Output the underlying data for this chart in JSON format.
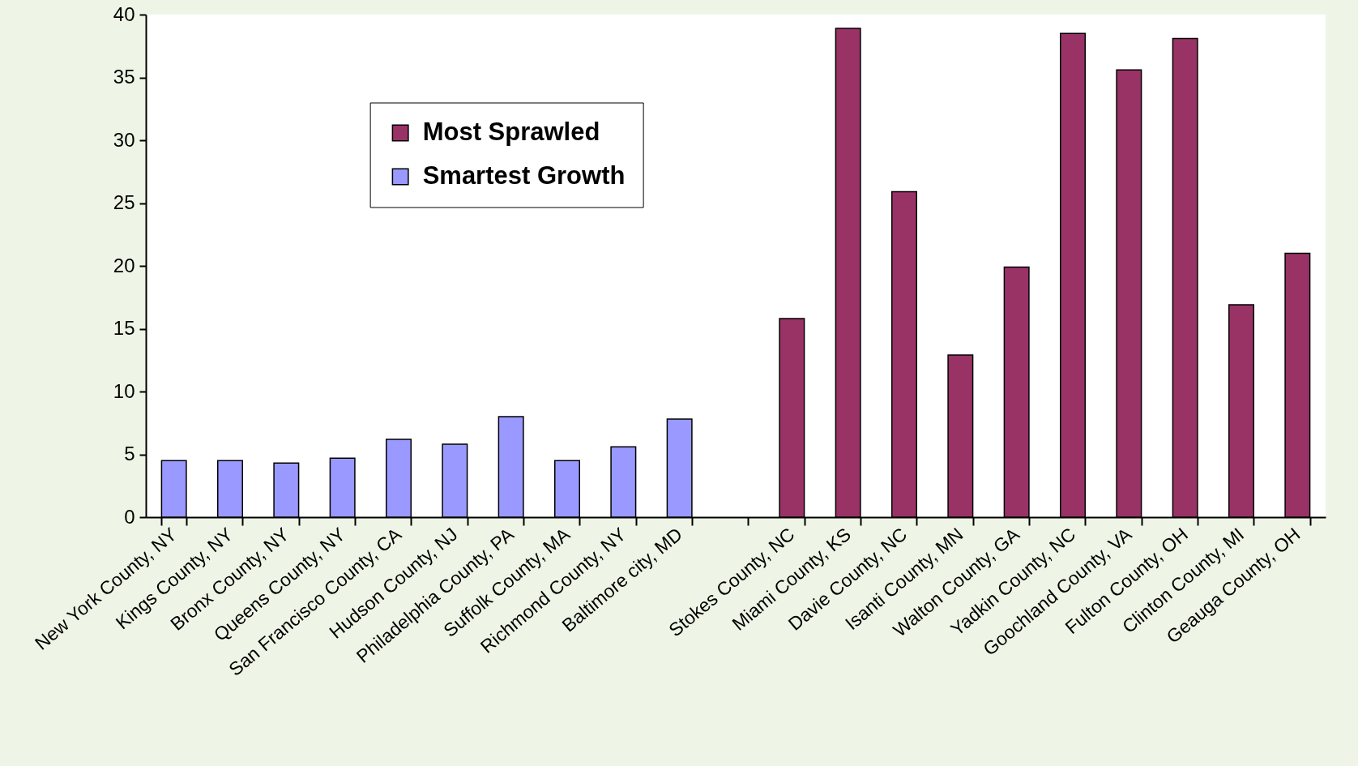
{
  "chart_data": {
    "type": "bar",
    "categories": [
      "New York County, NY",
      "Kings County, NY",
      "Bronx County, NY",
      "Queens County, NY",
      "San Francisco County, CA",
      "Hudson County, NJ",
      "Philadelphia County, PA",
      "Suffolk County, MA",
      "Richmond County, NY",
      "Baltimore city, MD",
      null,
      "Stokes County, NC",
      "Miami County, KS",
      "Davie County, NC",
      "Isanti County, MN",
      "Walton County, GA",
      "Yadkin County, NC",
      "Goochland County, VA",
      "Fulton County, OH",
      "Clinton County, MI",
      "Geauga County, OH"
    ],
    "series": [
      {
        "name": "Most Sprawled",
        "color": "#993366",
        "values": [
          null,
          null,
          null,
          null,
          null,
          null,
          null,
          null,
          null,
          null,
          null,
          15.8,
          38.9,
          25.9,
          12.9,
          19.9,
          38.5,
          35.6,
          38.1,
          16.9,
          21.0
        ]
      },
      {
        "name": "Smartest Growth",
        "color": "#9999ff",
        "values": [
          4.5,
          4.5,
          4.3,
          4.7,
          6.2,
          5.8,
          8.0,
          4.5,
          5.6,
          7.8,
          null,
          null,
          null,
          null,
          null,
          null,
          null,
          null,
          null,
          null,
          null
        ]
      }
    ],
    "ylim": [
      0,
      40
    ],
    "yticks": [
      0,
      5,
      10,
      15,
      20,
      25,
      30,
      35,
      40
    ],
    "grid": false,
    "legend": "top left"
  }
}
